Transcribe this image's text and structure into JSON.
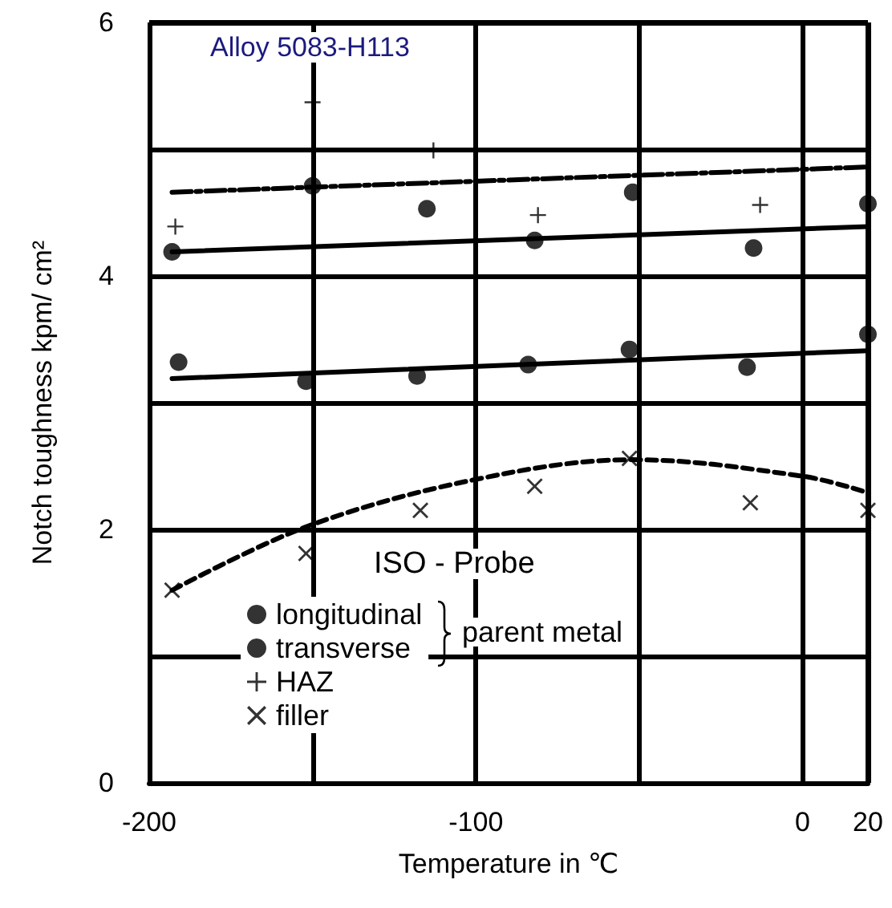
{
  "chart_data": {
    "type": "scatter",
    "xlabel": "Temperature in ℃",
    "ylabel": "Notch toughness kpm/ cm²",
    "legend_title": "ISO - Probe",
    "annotations": [
      "Alloy 5083-H113",
      "parent metal"
    ],
    "xlim": [
      -200,
      20
    ],
    "xticks": [
      -200,
      {
        "value": -150,
        "label": null
      },
      -100,
      {
        "value": -50,
        "label": null
      },
      0,
      20
    ],
    "ylim": [
      0,
      6
    ],
    "yticks": [
      0,
      {
        "value": 1,
        "label": null
      },
      2,
      {
        "value": 3,
        "label": null
      },
      4,
      {
        "value": 5,
        "label": null
      },
      6
    ],
    "grid": true,
    "legend": "bottom left",
    "series": [
      {
        "name": "longitudinal",
        "marker": "circle",
        "color": "#000000",
        "x": [
          -193,
          -150,
          -115,
          -82,
          -52,
          -15,
          20
        ],
        "values": [
          4.19,
          4.71,
          4.53,
          4.28,
          4.66,
          4.22,
          4.57
        ]
      },
      {
        "name": "transverse",
        "marker": "circle",
        "color": "#000000",
        "x": [
          -191,
          -152,
          -118,
          -84,
          -53,
          -17,
          20
        ],
        "values": [
          3.32,
          3.17,
          3.21,
          3.3,
          3.42,
          3.28,
          3.54
        ]
      },
      {
        "name": "HAZ",
        "marker": "cross",
        "color": "#000000",
        "x": [
          -192,
          -150,
          -113,
          -81,
          -13
        ],
        "values": [
          4.39,
          5.37,
          4.99,
          4.48,
          4.56
        ]
      },
      {
        "name": "filler",
        "marker": "x",
        "color": "#000000",
        "x": [
          -193,
          -152,
          -117,
          -82,
          -53,
          -16,
          20
        ],
        "values": [
          1.52,
          1.81,
          2.15,
          2.34,
          2.56,
          2.21,
          2.15
        ]
      },
      {
        "type": "line",
        "line_style": "solid",
        "color": "#000000",
        "x": [
          -193,
          20
        ],
        "values": [
          4.19,
          4.39
        ]
      },
      {
        "type": "line",
        "line_style": "dashdot",
        "color": "#000000",
        "x": [
          -193,
          20
        ],
        "values": [
          4.66,
          4.86
        ]
      },
      {
        "type": "line",
        "line_style": "solid",
        "color": "#000000",
        "x": [
          -193,
          20
        ],
        "values": [
          3.19,
          3.41
        ]
      },
      {
        "type": "line",
        "line_style": "dashed",
        "color": "#000000",
        "x": [
          -193,
          -151,
          -99,
          -52,
          0,
          20
        ],
        "values": [
          1.52,
          2.03,
          2.4,
          2.55,
          2.42,
          2.29
        ]
      }
    ]
  }
}
